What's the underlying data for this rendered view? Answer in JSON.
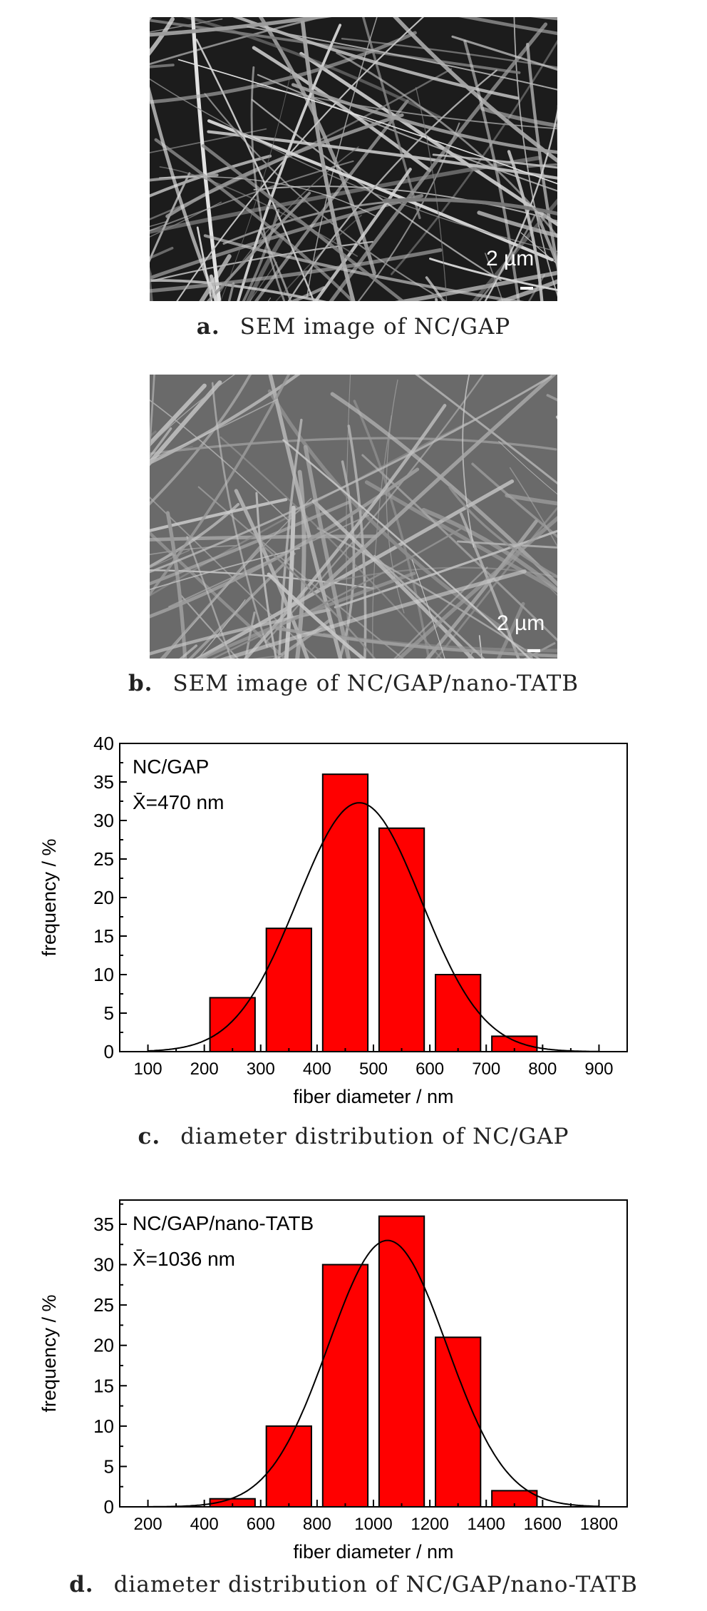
{
  "panels": [
    {
      "letter": "a.",
      "caption": "SEM image of NC/GAP",
      "scale_label": "2 µm",
      "style": "dark"
    },
    {
      "letter": "b.",
      "caption": "SEM image of NC/GAP/nano-TATB",
      "scale_label": "2 µm",
      "style": "light"
    }
  ],
  "chart_captions": [
    {
      "letter": "c.",
      "caption": "diameter distribution of NC/GAP"
    },
    {
      "letter": "d.",
      "caption": "diameter distribution of NC/GAP/nano-TATB"
    }
  ],
  "chart_data": [
    {
      "type": "bar",
      "xlabel": "fiber diameter / nm",
      "ylabel": "frequency / %",
      "annotation_sample": "NC/GAP",
      "annotation_mean": "X̄=470 nm",
      "xlim": [
        50,
        950
      ],
      "ylim": [
        0,
        40
      ],
      "x_ticks": [
        100,
        200,
        300,
        400,
        500,
        600,
        700,
        800,
        900
      ],
      "y_ticks": [
        0,
        5,
        10,
        15,
        20,
        25,
        30,
        35,
        40
      ],
      "bar_width": 80,
      "bars": [
        {
          "x": 250,
          "value": 7
        },
        {
          "x": 350,
          "value": 16
        },
        {
          "x": 450,
          "value": 36
        },
        {
          "x": 550,
          "value": 29
        },
        {
          "x": 650,
          "value": 10
        },
        {
          "x": 750,
          "value": 2
        }
      ],
      "fit": {
        "type": "gaussian",
        "mean": 475,
        "sigma": 110,
        "peak": 32.3
      },
      "bar_color": "#ff0000"
    },
    {
      "type": "bar",
      "xlabel": "fiber diameter / nm",
      "ylabel": "frequency / %",
      "annotation_sample": "NC/GAP/nano-TATB",
      "annotation_mean": "X̄=1036 nm",
      "xlim": [
        100,
        1900
      ],
      "ylim": [
        0,
        38
      ],
      "x_ticks": [
        200,
        400,
        600,
        800,
        1000,
        1200,
        1400,
        1600,
        1800
      ],
      "y_ticks": [
        0,
        5,
        10,
        15,
        20,
        25,
        30,
        35
      ],
      "bar_width": 160,
      "bars": [
        {
          "x": 500,
          "value": 1
        },
        {
          "x": 700,
          "value": 10
        },
        {
          "x": 900,
          "value": 30
        },
        {
          "x": 1100,
          "value": 36
        },
        {
          "x": 1300,
          "value": 21
        },
        {
          "x": 1500,
          "value": 2
        }
      ],
      "fit": {
        "type": "gaussian",
        "mean": 1050,
        "sigma": 210,
        "peak": 33
      },
      "bar_color": "#ff0000"
    }
  ]
}
